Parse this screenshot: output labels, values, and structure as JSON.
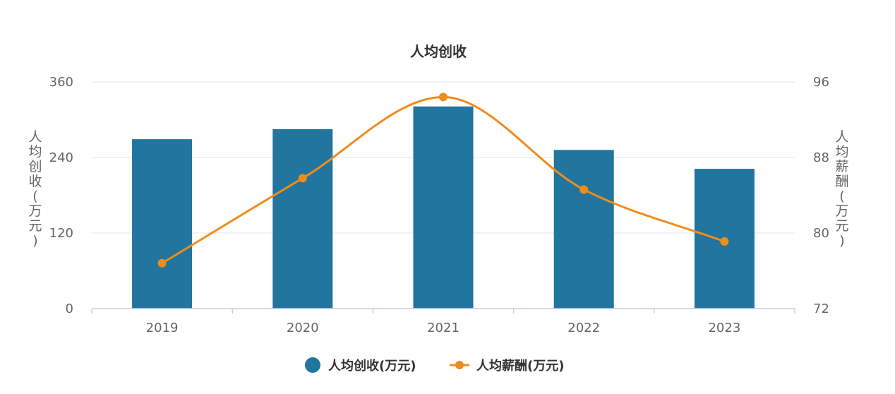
{
  "chart_data": {
    "type": "bar",
    "title": "人均创收",
    "categories": [
      "2019",
      "2020",
      "2021",
      "2022",
      "2023"
    ],
    "series": [
      {
        "name": "人均创收(万元)",
        "type": "bar",
        "axis": "left",
        "color": "#21759f",
        "values": [
          269,
          285,
          321,
          252,
          222
        ]
      },
      {
        "name": "人均薪酬(万元)",
        "type": "line",
        "axis": "right",
        "smooth": true,
        "color": "#f08c1c",
        "values": [
          76.8,
          85.8,
          94.4,
          84.6,
          79.1
        ]
      }
    ],
    "y_left": {
      "label": "人均创收(万元)",
      "min": 0,
      "max": 360,
      "ticks": [
        0,
        120,
        240,
        360
      ]
    },
    "y_right": {
      "label": "人均薪酬(万元)",
      "min": 72,
      "max": 96,
      "ticks": [
        72,
        80,
        88,
        96
      ]
    },
    "grid": true,
    "legend": "bottom"
  }
}
